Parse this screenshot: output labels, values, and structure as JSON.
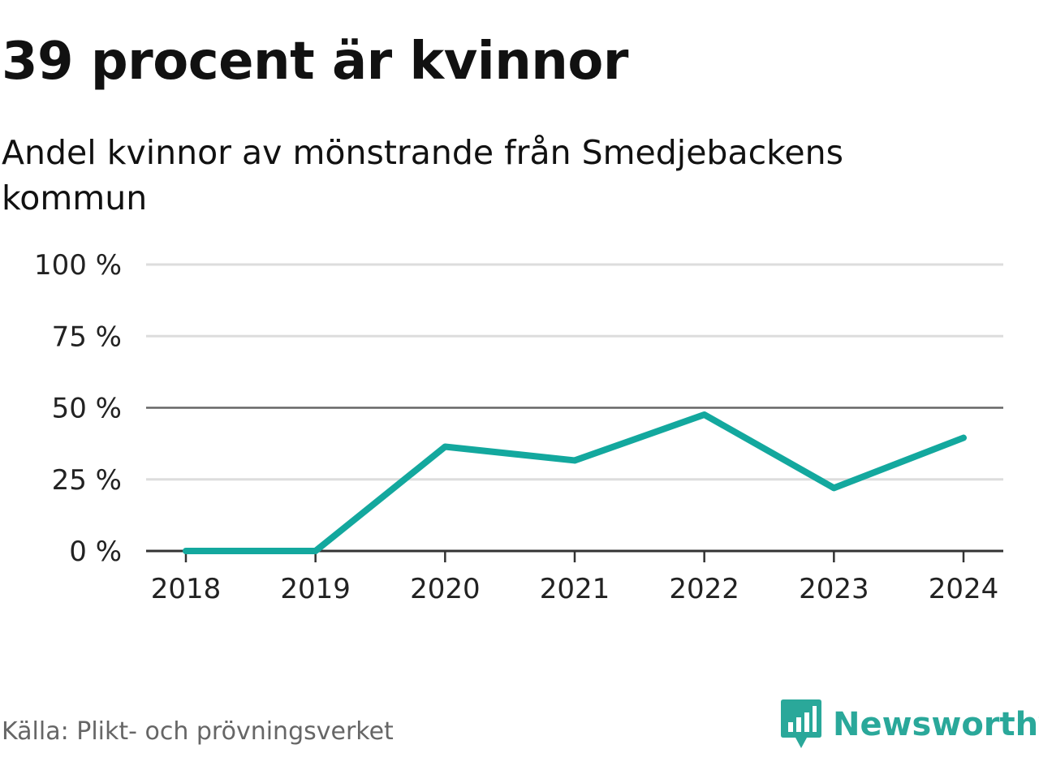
{
  "header": {
    "title": "39 procent är kvinnor",
    "subtitle": "Andel kvinnor av mönstrande från Smedjebackens kommun"
  },
  "footer": {
    "source": "Källa: Plikt- och prövningsverket",
    "brand": "Newsworthy",
    "brand_icon": "bar-chart-speech-bubble-icon"
  },
  "colors": {
    "line": "#13a89e",
    "grid": "#dddddd",
    "axis": "#333333",
    "brand": "#2aa89a"
  },
  "chart_data": {
    "type": "line",
    "x": [
      "2018",
      "2019",
      "2020",
      "2021",
      "2022",
      "2023",
      "2024"
    ],
    "series": [
      {
        "values": [
          0,
          0,
          36.4,
          31.6,
          47.6,
          22,
          39.5
        ]
      }
    ],
    "ylim": [
      0,
      100
    ],
    "yticks": [
      0,
      25,
      50,
      75,
      100
    ],
    "ytick_labels": [
      "0 %",
      "25 %",
      "50 %",
      "75 %",
      "100 %"
    ],
    "reference_line": 50,
    "grid": true,
    "legend": "none"
  }
}
